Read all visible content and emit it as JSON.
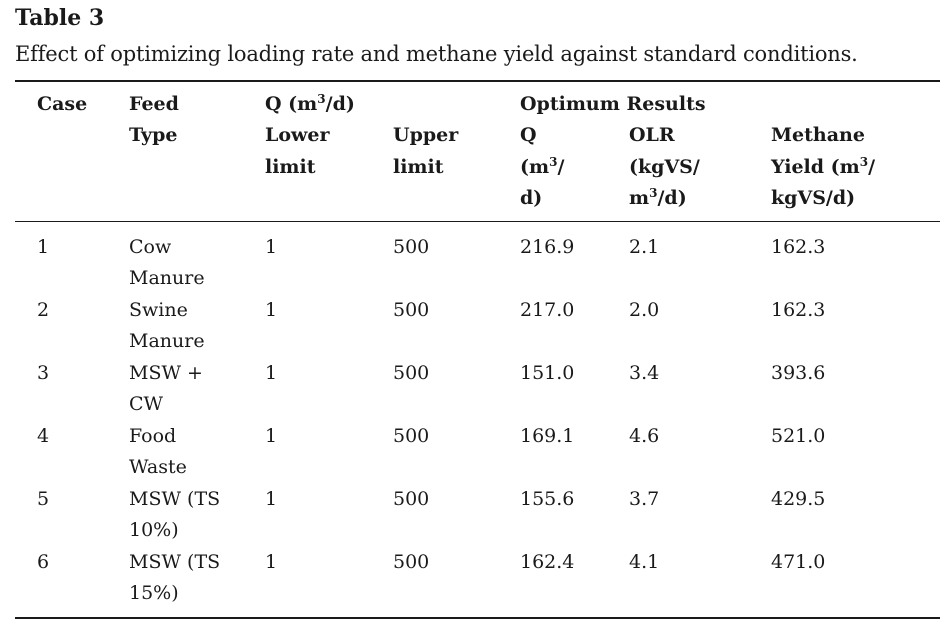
{
  "table": {
    "label": "Table 3",
    "caption": "Effect of optimizing loading rate and methane yield against standard conditions.",
    "headers": {
      "case": "Case",
      "feed_type_line1": "Feed",
      "feed_type_line2": "Type",
      "q_group": {
        "prefix": "Q (m",
        "sup": "3",
        "suffix": "/d)"
      },
      "lower_line1": "Lower",
      "lower_line2": "limit",
      "upper_line1": "Upper",
      "upper_line2": "limit",
      "optimum_group": "Optimum Results",
      "opt_q_line1": "Q",
      "opt_q_line2": {
        "prefix": "(m",
        "sup": "3",
        "suffix": "/"
      },
      "opt_q_line3": "d)",
      "olr_line1": "OLR",
      "olr_line2": "(kgVS/",
      "olr_line3": {
        "prefix": "m",
        "sup": "3",
        "suffix": "/d)"
      },
      "yield_line1": "Methane",
      "yield_line2": {
        "prefix": "Yield (m",
        "sup": "3",
        "suffix": "/"
      },
      "yield_line3": "kgVS/d)"
    },
    "rows": [
      {
        "case": "1",
        "feed_line1": "Cow",
        "feed_line2": "Manure",
        "lower": "1",
        "upper": "500",
        "opt_q": "216.9",
        "olr": "2.1",
        "methane_yield": "162.3"
      },
      {
        "case": "2",
        "feed_line1": "Swine",
        "feed_line2": "Manure",
        "lower": "1",
        "upper": "500",
        "opt_q": "217.0",
        "olr": "2.0",
        "methane_yield": "162.3"
      },
      {
        "case": "3",
        "feed_line1": "MSW +",
        "feed_line2": "CW",
        "lower": "1",
        "upper": "500",
        "opt_q": "151.0",
        "olr": "3.4",
        "methane_yield": "393.6"
      },
      {
        "case": "4",
        "feed_line1": "Food",
        "feed_line2": "Waste",
        "lower": "1",
        "upper": "500",
        "opt_q": "169.1",
        "olr": "4.6",
        "methane_yield": "521.0"
      },
      {
        "case": "5",
        "feed_line1": "MSW (TS",
        "feed_line2": "10%)",
        "lower": "1",
        "upper": "500",
        "opt_q": "155.6",
        "olr": "3.7",
        "methane_yield": "429.5"
      },
      {
        "case": "6",
        "feed_line1": "MSW (TS",
        "feed_line2": "15%)",
        "lower": "1",
        "upper": "500",
        "opt_q": "162.4",
        "olr": "4.1",
        "methane_yield": "471.0"
      }
    ]
  }
}
